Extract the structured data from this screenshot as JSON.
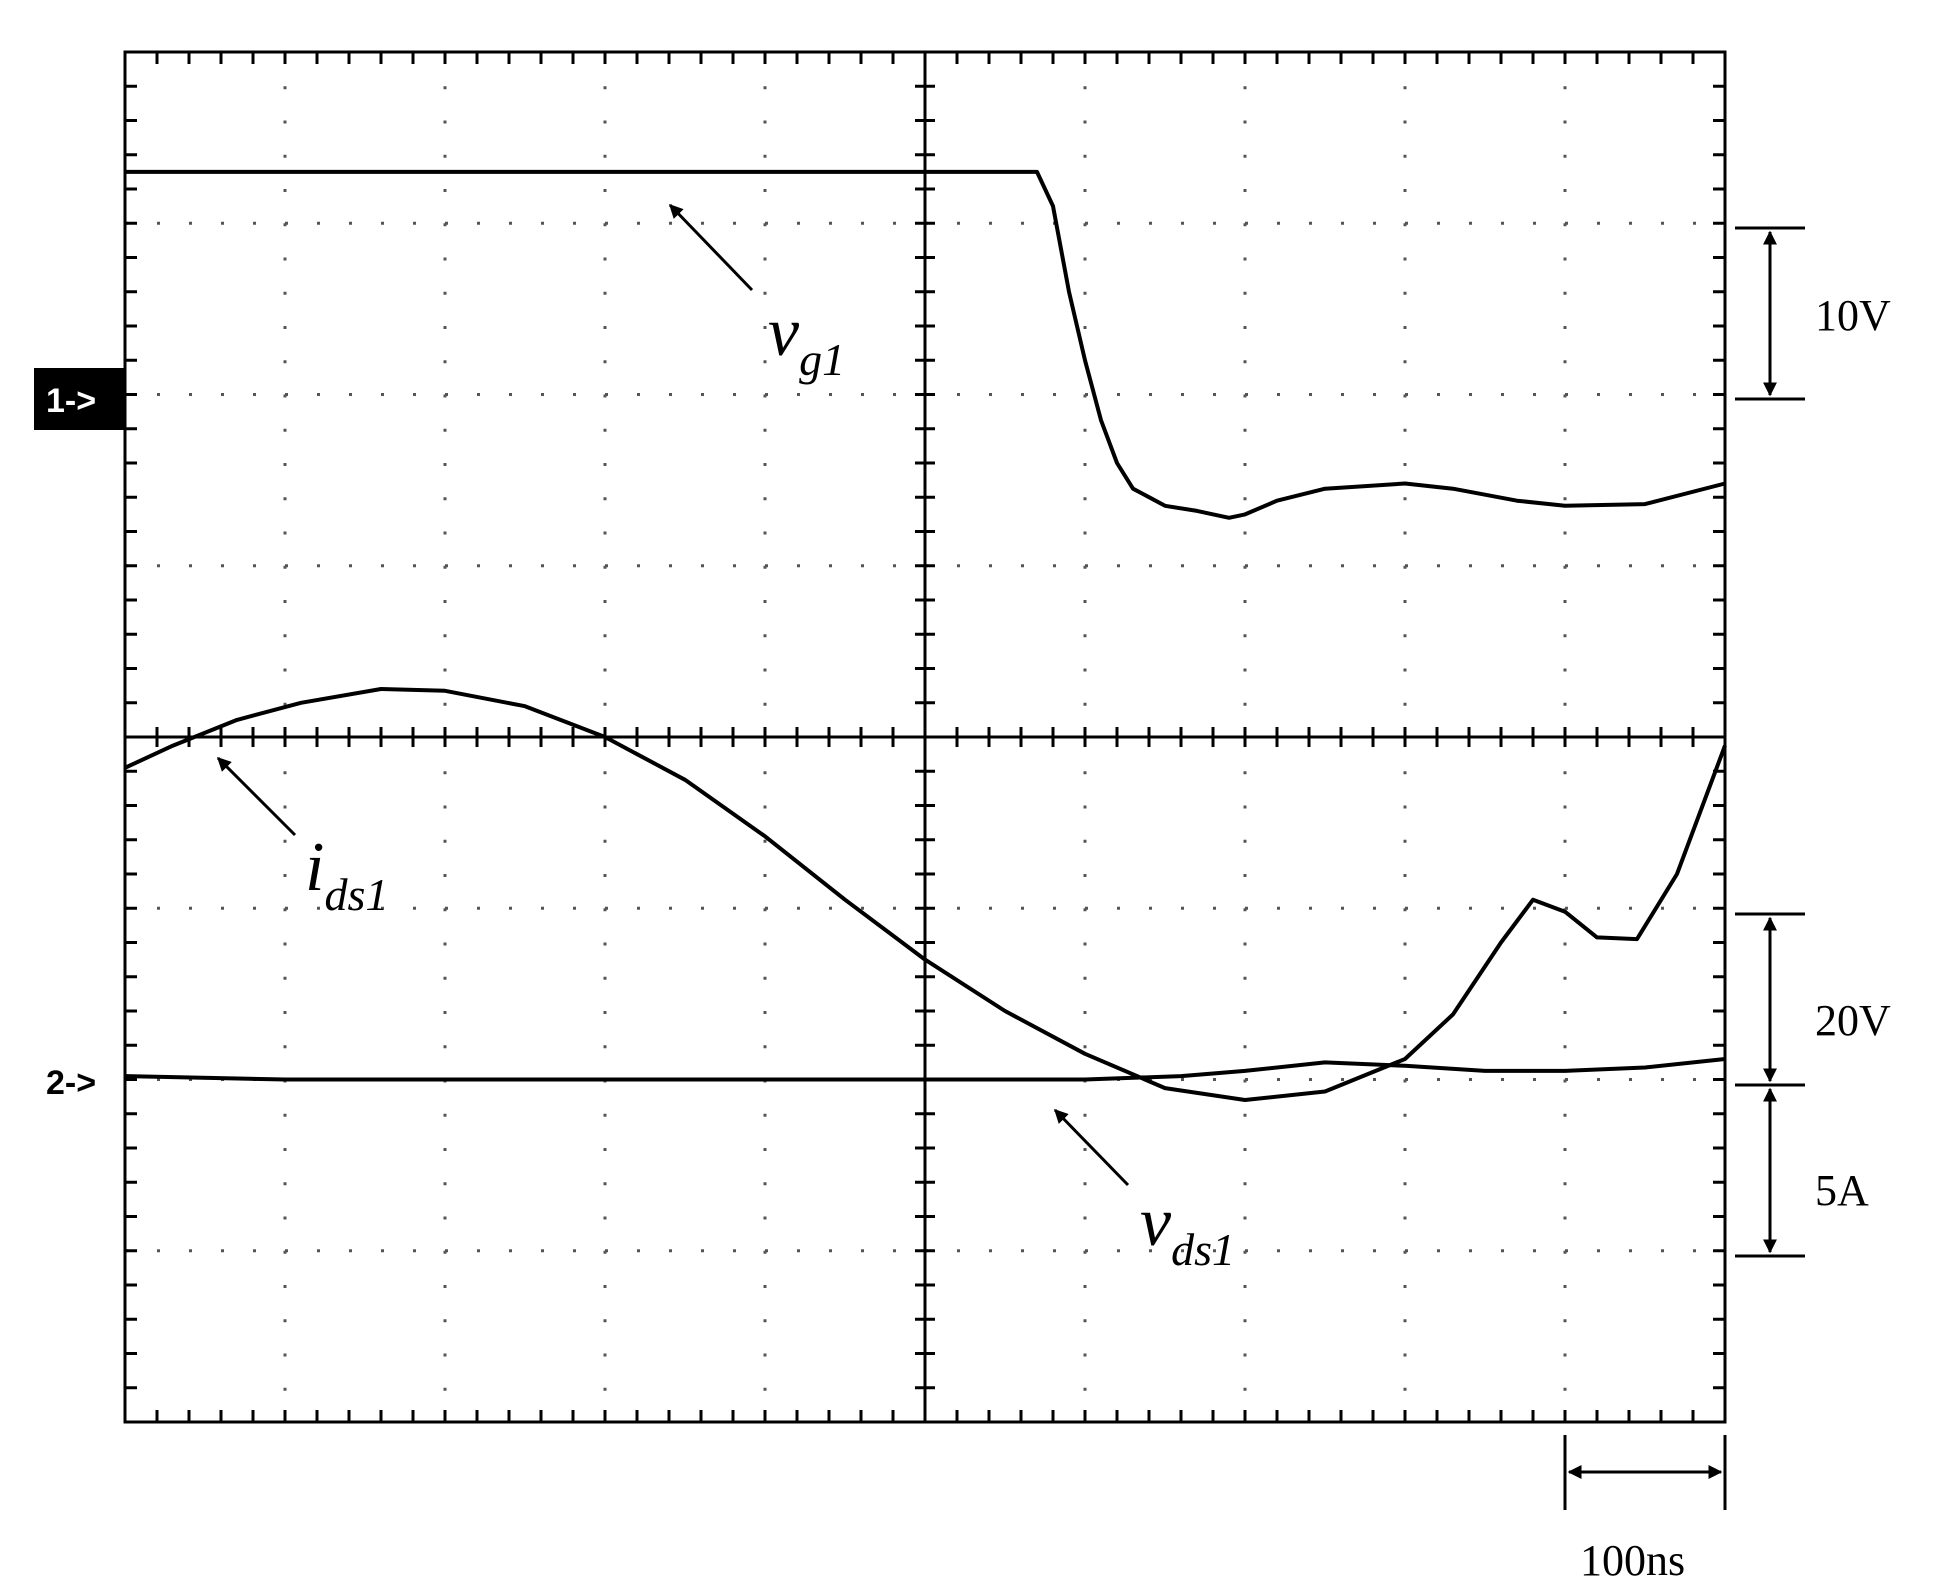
{
  "chart_data": {
    "type": "line",
    "title": "",
    "xlabel": "",
    "ylabel": "",
    "grid": true,
    "x_divisions": 10,
    "y_divisions": 8,
    "xlim": [
      0,
      10
    ],
    "ylim": [
      0,
      8
    ],
    "time_per_div": "100ns",
    "channel_markers": [
      "1->",
      "2->"
    ],
    "series": [
      {
        "name": "v",
        "subscript": "g1",
        "points": [
          [
            0,
            7.3
          ],
          [
            1,
            7.3
          ],
          [
            2,
            7.3
          ],
          [
            3,
            7.3
          ],
          [
            4,
            7.3
          ],
          [
            5,
            7.3
          ],
          [
            5.7,
            7.3
          ],
          [
            5.8,
            7.1
          ],
          [
            5.9,
            6.6
          ],
          [
            6,
            6.2
          ],
          [
            6.1,
            5.85
          ],
          [
            6.2,
            5.6
          ],
          [
            6.3,
            5.45
          ],
          [
            6.4,
            5.4
          ],
          [
            6.5,
            5.35
          ],
          [
            6.7,
            5.32
          ],
          [
            6.9,
            5.28
          ],
          [
            7,
            5.3
          ],
          [
            7.2,
            5.38
          ],
          [
            7.5,
            5.45
          ],
          [
            8,
            5.48
          ],
          [
            8.3,
            5.45
          ],
          [
            8.7,
            5.38
          ],
          [
            9,
            5.35
          ],
          [
            9.5,
            5.36
          ],
          [
            10,
            5.48
          ]
        ]
      },
      {
        "name": "i",
        "subscript": "ds1",
        "points": [
          [
            0,
            3.82
          ],
          [
            0.3,
            3.95
          ],
          [
            0.7,
            4.1
          ],
          [
            1.1,
            4.2
          ],
          [
            1.6,
            4.28
          ],
          [
            2,
            4.27
          ],
          [
            2.5,
            4.18
          ],
          [
            3,
            4.0
          ],
          [
            3.5,
            3.75
          ],
          [
            4,
            3.42
          ],
          [
            4.5,
            3.05
          ],
          [
            5,
            2.7
          ],
          [
            5.5,
            2.4
          ],
          [
            6,
            2.15
          ],
          [
            6.5,
            1.95
          ],
          [
            7,
            1.88
          ],
          [
            7.5,
            1.93
          ],
          [
            8,
            2.12
          ],
          [
            8.3,
            2.38
          ],
          [
            8.6,
            2.8
          ],
          [
            8.8,
            3.05
          ],
          [
            9,
            2.98
          ],
          [
            9.2,
            2.83
          ],
          [
            9.45,
            2.82
          ],
          [
            9.7,
            3.2
          ],
          [
            10,
            3.95
          ]
        ]
      },
      {
        "name": "v",
        "subscript": "ds1",
        "points": [
          [
            0,
            2.02
          ],
          [
            1,
            2.0
          ],
          [
            2,
            2.0
          ],
          [
            3,
            2.0
          ],
          [
            4,
            2.0
          ],
          [
            5,
            2.0
          ],
          [
            6,
            2.0
          ],
          [
            6.6,
            2.02
          ],
          [
            7,
            2.05
          ],
          [
            7.5,
            2.1
          ],
          [
            8,
            2.08
          ],
          [
            8.5,
            2.05
          ],
          [
            9,
            2.05
          ],
          [
            9.5,
            2.07
          ],
          [
            10,
            2.12
          ]
        ]
      }
    ],
    "scale_bars": [
      {
        "label": "10V"
      },
      {
        "label": "20V"
      },
      {
        "label": "5A"
      }
    ],
    "time_bar": {
      "label": "100ns"
    }
  }
}
